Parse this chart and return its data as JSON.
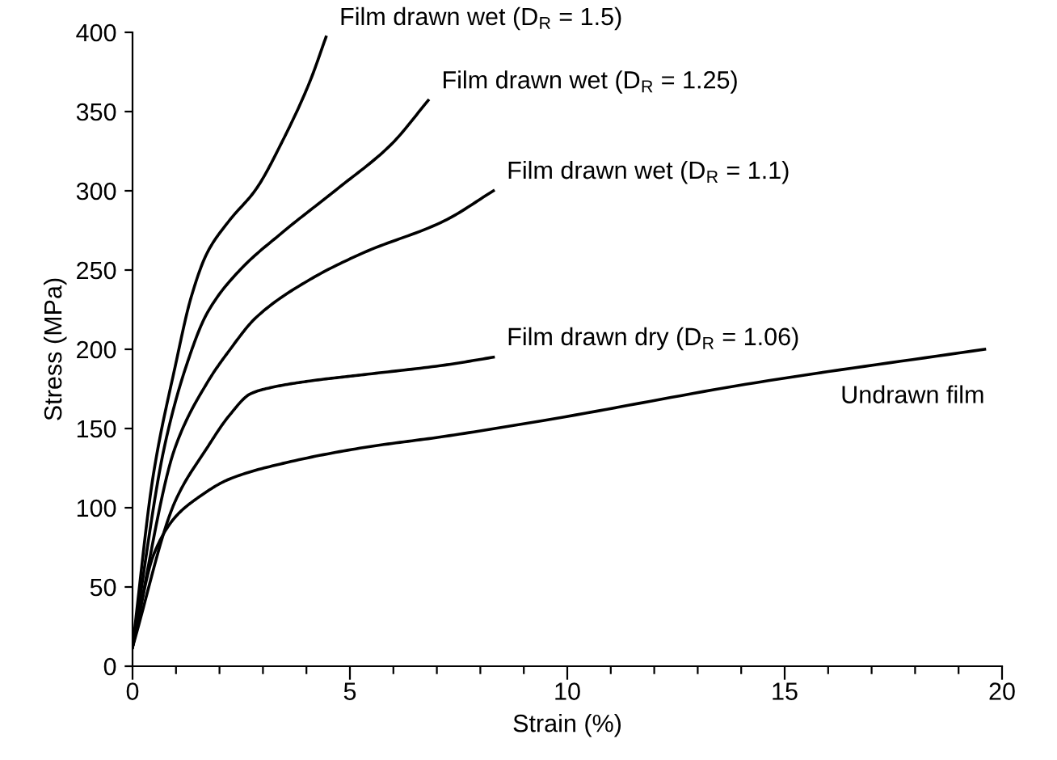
{
  "chart_data": {
    "type": "line",
    "xlabel": "Strain (%)",
    "ylabel": "Stress (MPa)",
    "xlim": [
      0,
      20
    ],
    "ylim": [
      0,
      400
    ],
    "xticks": [
      0,
      {
        "value": 1,
        "label": null
      },
      {
        "value": 2,
        "label": null
      },
      {
        "value": 3,
        "label": null
      },
      {
        "value": 4,
        "label": null
      },
      5,
      {
        "value": 6,
        "label": null
      },
      {
        "value": 7,
        "label": null
      },
      {
        "value": 8,
        "label": null
      },
      {
        "value": 9,
        "label": null
      },
      10,
      {
        "value": 11,
        "label": null
      },
      {
        "value": 12,
        "label": null
      },
      {
        "value": 13,
        "label": null
      },
      {
        "value": 14,
        "label": null
      },
      15,
      {
        "value": 16,
        "label": null
      },
      {
        "value": 17,
        "label": null
      },
      {
        "value": 18,
        "label": null
      },
      {
        "value": 19,
        "label": null
      },
      20
    ],
    "yticks": [
      0,
      50,
      100,
      150,
      200,
      250,
      300,
      350,
      400
    ],
    "grid": false,
    "legend": false,
    "marker": "none",
    "line_style": "solid",
    "series": [
      {
        "name": "Film drawn wet (D$_{R}$ = 1.5)",
        "color": "#000000",
        "x": [
          0,
          0.48,
          0.98,
          1.35,
          1.72,
          2.22,
          2.84,
          3.46,
          4.08,
          4.45
        ],
        "values": [
          12,
          121,
          189,
          233,
          261,
          281,
          301,
          332,
          369,
          397
        ]
      },
      {
        "name": "Film drawn wet (D$_{R}$ = 1.25)",
        "color": "#000000",
        "x": [
          0,
          0.73,
          1.23,
          1.72,
          2.47,
          3.46,
          4.7,
          5.94,
          6.8
        ],
        "values": [
          12,
          138,
          189,
          223,
          250,
          274,
          301,
          329,
          357
        ]
      },
      {
        "name": "Film drawn wet (D$_{R}$ = 1.1)",
        "color": "#000000",
        "x": [
          0,
          0.98,
          1.72,
          2.22,
          2.84,
          4.08,
          5.32,
          7.17,
          8.3
        ],
        "values": [
          12,
          138,
          179,
          199,
          220,
          244,
          261,
          281,
          300
        ]
      },
      {
        "name": "Film drawn dry (D$_{R}$ = 1.06)",
        "color": "#000000",
        "x": [
          0,
          0.98,
          1.72,
          2.22,
          2.72,
          3.21,
          4.08,
          5.32,
          7.17,
          8.3
        ],
        "values": [
          12,
          104,
          138,
          158,
          172,
          176,
          180,
          184,
          190,
          195
        ]
      },
      {
        "name": "Undrawn film",
        "color": "#000000",
        "x": [
          0,
          0.48,
          0.98,
          1.54,
          2.22,
          3.46,
          5.32,
          7.17,
          9.44,
          14.35,
          19.6
        ],
        "values": [
          12,
          70,
          94,
          107,
          118,
          128,
          138,
          145,
          155,
          179,
          200
        ]
      }
    ]
  }
}
